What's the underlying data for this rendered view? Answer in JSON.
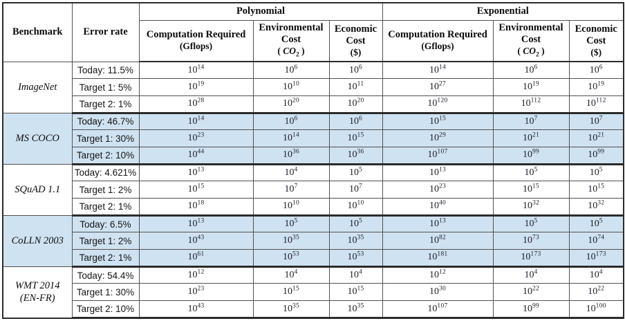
{
  "table": {
    "value_base": "10",
    "highlight_color": "#cfe2f1",
    "border_color": "#2b2b2b",
    "header": {
      "benchmark": "Benchmark",
      "error_rate": "Error rate",
      "group_polynomial": "Polynomial",
      "group_exponential": "Exponential",
      "computation_title": "Computation Required",
      "computation_unit": "(Gflops)",
      "environmental_title": "Environmental Cost",
      "environmental_unit_open": "( ",
      "environmental_unit_symbol": "CO",
      "environmental_unit_subscript": "2",
      "environmental_unit_close": " )",
      "economic_title": "Economic Cost",
      "economic_unit": "($)"
    },
    "groups": [
      {
        "name": "ImageNet",
        "highlight": false,
        "rows": [
          {
            "error": "Today: 11.5%",
            "poly": [
              14,
              6,
              6
            ],
            "exp": [
              14,
              6,
              6
            ]
          },
          {
            "error": "Target 1: 5%",
            "poly": [
              19,
              10,
              11
            ],
            "exp": [
              27,
              19,
              19
            ]
          },
          {
            "error": "Target 2: 1%",
            "poly": [
              28,
              20,
              20
            ],
            "exp": [
              120,
              112,
              112
            ]
          }
        ]
      },
      {
        "name": "MS COCO",
        "highlight": true,
        "rows": [
          {
            "error": "Today: 46.7%",
            "poly": [
              14,
              6,
              6
            ],
            "exp": [
              15,
              7,
              7
            ]
          },
          {
            "error": "Target 1: 30%",
            "poly": [
              23,
              14,
              15
            ],
            "exp": [
              29,
              21,
              21
            ]
          },
          {
            "error": "Target 2: 10%",
            "poly": [
              44,
              36,
              36
            ],
            "exp": [
              107,
              99,
              99
            ]
          }
        ]
      },
      {
        "name": "SQuAD 1.1",
        "highlight": false,
        "rows": [
          {
            "error": "Today: 4.621%",
            "poly": [
              13,
              4,
              5
            ],
            "exp": [
              13,
              5,
              5
            ]
          },
          {
            "error": "Target 1: 2%",
            "poly": [
              15,
              7,
              7
            ],
            "exp": [
              23,
              15,
              15
            ]
          },
          {
            "error": "Target 2: 1%",
            "poly": [
              18,
              10,
              10
            ],
            "exp": [
              40,
              32,
              32
            ]
          }
        ]
      },
      {
        "name": "CoLLN 2003",
        "highlight": true,
        "rows": [
          {
            "error": "Today: 6.5%",
            "poly": [
              13,
              5,
              5
            ],
            "exp": [
              13,
              5,
              5
            ]
          },
          {
            "error": "Target 1: 2%",
            "poly": [
              43,
              35,
              35
            ],
            "exp": [
              82,
              73,
              74
            ]
          },
          {
            "error": "Target 2: 1%",
            "poly": [
              61,
              53,
              53
            ],
            "exp": [
              181,
              173,
              173
            ]
          }
        ]
      },
      {
        "name": "WMT 2014\n(EN-FR)",
        "highlight": false,
        "rows": [
          {
            "error": "Today: 54.4%",
            "poly": [
              12,
              4,
              4
            ],
            "exp": [
              12,
              4,
              4
            ]
          },
          {
            "error": "Target 1: 30%",
            "poly": [
              23,
              15,
              15
            ],
            "exp": [
              30,
              22,
              22
            ]
          },
          {
            "error": "Target 2: 10%",
            "poly": [
              43,
              35,
              35
            ],
            "exp": [
              107,
              99,
              100
            ]
          }
        ]
      }
    ]
  }
}
